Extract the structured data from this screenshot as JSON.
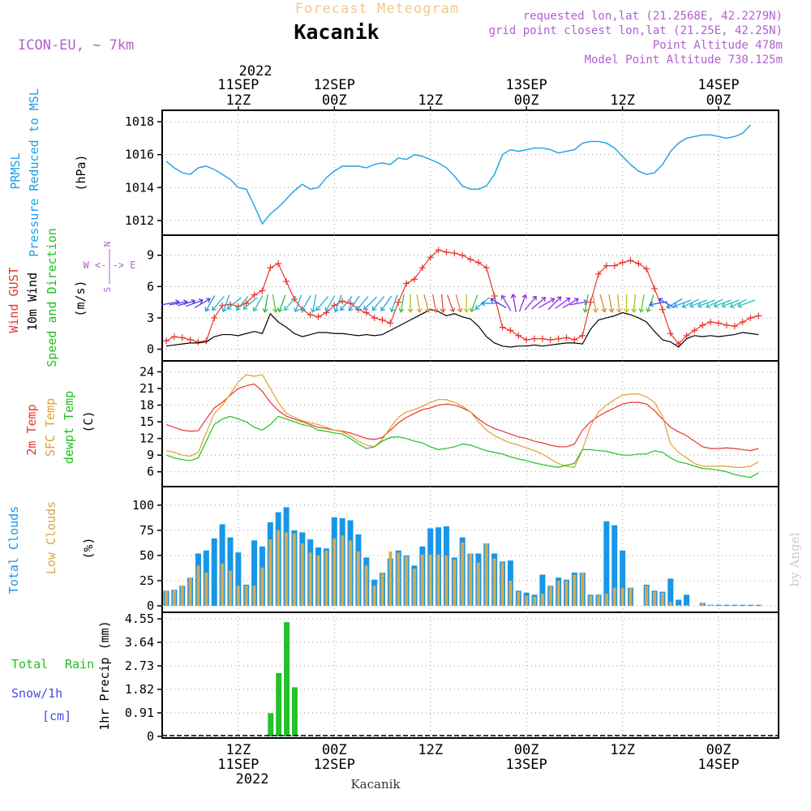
{
  "header": {
    "forecast_title": "Forecast Meteogram",
    "location": "Kacanik",
    "model": "ICON-EU, ~ 7km",
    "requested": "requested lon,lat (21.2568E, 42.2279N)",
    "grid_point": "grid point closest lon,lat (21.25E, 42.25N)",
    "point_altitude": "Point Altitude 478m",
    "model_altitude": "Model Point Altitude 730.125m"
  },
  "time_axis": {
    "top_year": "2022",
    "bottom_year": "2022",
    "hours_span": 64,
    "ticks": [
      {
        "hour": 9,
        "label": "12Z",
        "date": "11SEP"
      },
      {
        "hour": 21,
        "label": "00Z",
        "date": "12SEP"
      },
      {
        "hour": 33,
        "label": "12Z",
        "date": ""
      },
      {
        "hour": 45,
        "label": "00Z",
        "date": "13SEP"
      },
      {
        "hour": 57,
        "label": "12Z",
        "date": ""
      },
      {
        "hour": 69,
        "label": "00Z",
        "date": "14SEP"
      }
    ]
  },
  "footer_location": "Kacanik",
  "watermark": "by Angel",
  "labels": {
    "p1": {
      "prmsl": "PRMSL",
      "pressure": "Pressure Reduced to MSL",
      "unit": "(hPa)"
    },
    "p2": {
      "gust": "Wind GUST",
      "wind": "10m Wind",
      "speed": "Speed and Direction",
      "unit": "(m/s)",
      "n": "N",
      "arrows_top": "^",
      "we": "W <-|-> E",
      "s": "S"
    },
    "p3": {
      "t2m": "2m Temp",
      "sfc": "SFC Temp",
      "dew": "dewpt Temp",
      "unit": "(C)"
    },
    "p4": {
      "total": "Total Clouds",
      "low": "Low Clouds",
      "unit": "(%)"
    },
    "p5": {
      "total": "Total",
      "rain": "Rain",
      "snow": "Snow/1h",
      "cm": "[cm]",
      "unit": "1hr Precip (mm)"
    }
  },
  "colors": {
    "pressure": "#1ca0e6",
    "gust": "#e8352e",
    "wind": "#000000",
    "t2m": "#e8352e",
    "sfc": "#e0a030",
    "dew": "#20c020",
    "total_clouds": "#1896e8",
    "low_clouds": "#d8a84c",
    "rain": "#22c22a",
    "title_orange": "#f0c88a",
    "purple": "#b060d0",
    "snow_blue": "#4a4ae0"
  },
  "chart_data": {
    "type": "meteogram",
    "start_hour": 0,
    "pressure": {
      "ylim": [
        1011.5,
        1018.3
      ],
      "ticks": [
        1012,
        1014,
        1016,
        1018
      ],
      "values": [
        1015.6,
        1015.2,
        1014.9,
        1014.8,
        1015.2,
        1015.3,
        1015.1,
        1014.8,
        1014.5,
        1014.0,
        1013.9,
        1012.9,
        1011.8,
        1012.4,
        1012.8,
        1013.3,
        1013.8,
        1014.2,
        1013.9,
        1014.0,
        1014.6,
        1015.0,
        1015.3,
        1015.3,
        1015.3,
        1015.2,
        1015.4,
        1015.5,
        1015.4,
        1015.8,
        1015.7,
        1016.0,
        1015.9,
        1015.7,
        1015.5,
        1015.2,
        1014.7,
        1014.1,
        1013.9,
        1013.9,
        1014.1,
        1014.8,
        1016.0,
        1016.3,
        1016.2,
        1016.3,
        1016.4,
        1016.4,
        1016.3,
        1016.1,
        1016.2,
        1016.3,
        1016.7,
        1016.8,
        1016.8,
        1016.7,
        1016.4,
        1015.9,
        1015.4,
        1015.0,
        1014.8,
        1014.9,
        1015.4,
        1016.2,
        1016.7,
        1017.0,
        1017.1,
        1017.2,
        1017.2,
        1017.1,
        1017.0,
        1017.1,
        1017.3,
        1017.8
      ]
    },
    "wind": {
      "ylim": [
        -0.5,
        10.3
      ],
      "ticks": [
        0,
        3,
        6,
        9
      ],
      "gust": [
        0.8,
        1.2,
        1.1,
        0.9,
        0.7,
        0.8,
        3.0,
        4.2,
        4.3,
        4.1,
        4.4,
        5.2,
        5.6,
        7.8,
        8.2,
        6.5,
        4.8,
        3.8,
        3.3,
        3.1,
        3.5,
        4.2,
        4.6,
        4.4,
        3.8,
        3.5,
        3.0,
        2.8,
        2.5,
        4.5,
        6.3,
        6.7,
        7.8,
        8.8,
        9.5,
        9.3,
        9.2,
        9.0,
        8.6,
        8.3,
        7.8,
        5.1,
        2.1,
        1.8,
        1.3,
        0.9,
        1.0,
        1.0,
        0.9,
        1.0,
        1.1,
        0.9,
        1.3,
        4.5,
        7.2,
        8.0,
        8.0,
        8.3,
        8.5,
        8.2,
        7.7,
        5.8,
        3.8,
        1.5,
        0.5,
        1.3,
        1.8,
        2.3,
        2.6,
        2.5,
        2.3,
        2.2,
        2.6,
        3.0,
        3.2
      ],
      "speed": [
        0.3,
        0.4,
        0.5,
        0.6,
        0.6,
        0.7,
        1.2,
        1.4,
        1.4,
        1.3,
        1.5,
        1.7,
        1.5,
        3.4,
        2.6,
        2.1,
        1.5,
        1.2,
        1.4,
        1.6,
        1.6,
        1.5,
        1.5,
        1.4,
        1.3,
        1.4,
        1.3,
        1.4,
        1.8,
        2.2,
        2.6,
        3.0,
        3.4,
        3.8,
        3.6,
        3.2,
        3.4,
        3.1,
        2.9,
        2.2,
        1.2,
        0.6,
        0.3,
        0.2,
        0.3,
        0.3,
        0.4,
        0.3,
        0.4,
        0.5,
        0.6,
        0.6,
        0.5,
        1.9,
        2.8,
        3.0,
        3.2,
        3.5,
        3.3,
        3.0,
        2.6,
        1.7,
        0.9,
        0.7,
        0.2,
        1.0,
        1.3,
        1.2,
        1.3,
        1.2,
        1.3,
        1.4,
        1.6,
        1.5,
        1.4
      ]
    },
    "temperature": {
      "ylim": [
        4.5,
        24.8
      ],
      "ticks": [
        6,
        9,
        12,
        15,
        18,
        21,
        24
      ],
      "t2m": [
        14.5,
        14.0,
        13.5,
        13.3,
        13.4,
        15.5,
        17.5,
        18.5,
        19.8,
        21.0,
        21.5,
        21.8,
        20.5,
        18.5,
        17.0,
        16.0,
        15.5,
        15.0,
        14.5,
        14.0,
        13.8,
        13.5,
        13.3,
        13.0,
        12.5,
        12.0,
        11.8,
        12.2,
        13.5,
        14.8,
        15.8,
        16.5,
        17.2,
        17.5,
        18.0,
        18.2,
        18.0,
        17.5,
        16.8,
        15.5,
        14.5,
        13.8,
        13.3,
        12.8,
        12.3,
        12.0,
        11.5,
        11.2,
        10.8,
        10.5,
        10.5,
        11.0,
        13.5,
        15.0,
        16.0,
        16.8,
        17.5,
        18.2,
        18.5,
        18.5,
        18.2,
        17.0,
        15.5,
        14.0,
        13.2,
        12.5,
        11.5,
        10.5,
        10.2,
        10.2,
        10.3,
        10.2,
        10.0,
        9.8,
        10.2
      ],
      "sfc": [
        9.8,
        9.5,
        9.0,
        8.8,
        9.5,
        13.0,
        16.5,
        18.0,
        20.0,
        22.2,
        23.5,
        23.2,
        23.5,
        21.0,
        18.5,
        16.5,
        15.8,
        15.2,
        14.8,
        14.5,
        14.0,
        13.5,
        13.2,
        12.5,
        11.5,
        10.8,
        10.5,
        11.8,
        14.0,
        15.8,
        16.8,
        17.2,
        17.8,
        18.5,
        19.0,
        19.0,
        18.5,
        17.8,
        16.8,
        15.0,
        13.5,
        12.5,
        11.8,
        11.2,
        10.8,
        10.3,
        9.8,
        9.2,
        8.3,
        7.5,
        7.0,
        6.8,
        10.0,
        14.2,
        16.8,
        18.0,
        19.0,
        19.8,
        20.0,
        20.0,
        19.5,
        18.5,
        16.0,
        11.0,
        9.5,
        8.5,
        7.5,
        7.0,
        7.0,
        7.0,
        7.0,
        6.8,
        6.8,
        7.0,
        7.8
      ],
      "dew": [
        9.0,
        8.5,
        8.2,
        8.0,
        8.5,
        11.5,
        14.5,
        15.5,
        16.0,
        15.5,
        15.0,
        14.0,
        13.5,
        14.5,
        16.0,
        15.5,
        15.0,
        14.5,
        14.2,
        13.5,
        13.3,
        13.0,
        12.8,
        12.0,
        11.0,
        10.2,
        10.5,
        11.5,
        12.2,
        12.3,
        12.0,
        11.5,
        11.2,
        10.5,
        10.0,
        10.2,
        10.5,
        11.0,
        10.8,
        10.3,
        9.8,
        9.5,
        9.2,
        8.7,
        8.3,
        8.0,
        7.6,
        7.3,
        7.0,
        6.8,
        7.2,
        7.5,
        10.0,
        10.0,
        9.8,
        9.7,
        9.3,
        9.0,
        9.0,
        9.2,
        9.2,
        9.8,
        9.5,
        8.5,
        7.8,
        7.5,
        7.0,
        6.6,
        6.5,
        6.3,
        6.0,
        5.5,
        5.2,
        5.0,
        5.8
      ]
    },
    "clouds": {
      "ylim": [
        0,
        112
      ],
      "ticks": [
        0,
        25,
        50,
        75,
        100
      ],
      "total": [
        15,
        16,
        20,
        28,
        52,
        55,
        67,
        81,
        68,
        53,
        21,
        65,
        59,
        83,
        93,
        98,
        75,
        73,
        66,
        58,
        57,
        88,
        87,
        85,
        71,
        48,
        26,
        33,
        47,
        55,
        50,
        40,
        59,
        77,
        78,
        79,
        48,
        68,
        52,
        52,
        62,
        52,
        44,
        45,
        15,
        13,
        11,
        31,
        20,
        28,
        26,
        33,
        33,
        11,
        11,
        84,
        80,
        55,
        18,
        0,
        21,
        15,
        14,
        27,
        6,
        11,
        0,
        3,
        1,
        1,
        1,
        1,
        1,
        1,
        1
      ],
      "low": [
        15,
        16,
        20,
        28,
        40,
        33,
        0,
        42,
        35,
        20,
        20,
        20,
        38,
        66,
        75,
        73,
        72,
        62,
        53,
        50,
        55,
        67,
        70,
        65,
        54,
        40,
        20,
        33,
        54,
        53,
        49,
        37,
        51,
        51,
        51,
        50,
        46,
        63,
        52,
        43,
        62,
        47,
        43,
        25,
        14,
        10,
        9,
        12,
        20,
        25,
        25,
        31,
        33,
        10,
        10,
        12,
        18,
        18,
        18,
        0,
        20,
        14,
        13,
        4,
        1,
        1,
        0,
        3,
        1,
        0,
        0,
        0,
        0,
        0,
        0
      ]
    },
    "precip": {
      "ylim": [
        0,
        4.55
      ],
      "ticks": [
        0,
        0.91,
        1.82,
        2.73,
        3.64,
        4.55
      ],
      "rain": [
        0,
        0,
        0,
        0,
        0,
        0,
        0,
        0,
        0,
        0,
        0,
        0,
        0,
        0.9,
        2.45,
        4.42,
        1.9,
        0,
        0,
        0,
        0,
        0,
        0,
        0,
        0,
        0,
        0,
        0,
        0,
        0,
        0,
        0,
        0,
        0,
        0,
        0,
        0,
        0,
        0,
        0,
        0,
        0,
        0,
        0,
        0,
        0,
        0,
        0,
        0,
        0,
        0,
        0,
        0,
        0,
        0,
        0,
        0,
        0,
        0,
        0,
        0,
        0,
        0,
        0,
        0,
        0,
        0,
        0,
        0,
        0,
        0,
        0,
        0,
        0,
        0
      ],
      "snow": [
        0,
        0,
        0,
        0,
        0,
        0,
        0,
        0,
        0,
        0,
        0,
        0,
        0,
        0,
        0,
        0,
        0,
        0,
        0,
        0,
        0,
        0,
        0,
        0,
        0,
        0,
        0,
        0,
        0,
        0,
        0,
        0,
        0,
        0,
        0,
        0,
        0,
        0,
        0,
        0,
        0,
        0,
        0,
        0,
        0,
        0,
        0,
        0,
        0,
        0,
        0,
        0,
        0,
        0,
        0,
        0,
        0,
        0,
        0,
        0,
        0,
        0,
        0,
        0,
        0,
        0,
        0,
        0,
        0,
        0,
        0,
        0,
        0,
        0,
        0
      ]
    },
    "wind_barbs": [
      {
        "x": 0.5,
        "dir": 80,
        "c": "#4a3ae0"
      },
      {
        "x": 1.5,
        "dir": 80,
        "c": "#4a3ae0"
      },
      {
        "x": 2.5,
        "dir": 75,
        "c": "#4a3ae0"
      },
      {
        "x": 3.5,
        "dir": 70,
        "c": "#4a3ae0"
      },
      {
        "x": 4.5,
        "dir": 60,
        "c": "#5a3ae0"
      },
      {
        "x": 5.5,
        "dir": 210,
        "c": "#2090e0"
      },
      {
        "x": 6.5,
        "dir": 220,
        "c": "#20b0d0"
      },
      {
        "x": 7.5,
        "dir": 200,
        "c": "#20b0d0"
      },
      {
        "x": 8.5,
        "dir": 230,
        "c": "#20b0d0"
      },
      {
        "x": 9.5,
        "dir": 220,
        "c": "#20c0b0"
      },
      {
        "x": 10.5,
        "dir": 230,
        "c": "#20c0b0"
      },
      {
        "x": 11.5,
        "dir": 210,
        "c": "#20c0b0"
      },
      {
        "x": 12.5,
        "dir": 190,
        "c": "#20c040"
      },
      {
        "x": 13.5,
        "dir": 170,
        "c": "#60c020"
      },
      {
        "x": 14.5,
        "dir": 200,
        "c": "#20c040"
      },
      {
        "x": 15.5,
        "dir": 220,
        "c": "#20c0b0"
      },
      {
        "x": 16.5,
        "dir": 200,
        "c": "#20b0d0"
      },
      {
        "x": 17.5,
        "dir": 210,
        "c": "#20b0d0"
      },
      {
        "x": 18.5,
        "dir": 190,
        "c": "#20b0d0"
      },
      {
        "x": 19.5,
        "dir": 220,
        "c": "#20b0d0"
      },
      {
        "x": 20.5,
        "dir": 210,
        "c": "#20b0d0"
      },
      {
        "x": 21.5,
        "dir": 200,
        "c": "#20a0e0"
      },
      {
        "x": 22.5,
        "dir": 220,
        "c": "#20a0e0"
      },
      {
        "x": 23.5,
        "dir": 215,
        "c": "#20a0e0"
      },
      {
        "x": 24.5,
        "dir": 220,
        "c": "#20a0e0"
      },
      {
        "x": 25.5,
        "dir": 225,
        "c": "#20a0e0"
      },
      {
        "x": 26.5,
        "dir": 220,
        "c": "#20a0e0"
      },
      {
        "x": 27.5,
        "dir": 215,
        "c": "#20a0e0"
      },
      {
        "x": 28.5,
        "dir": 200,
        "c": "#20b0d0"
      },
      {
        "x": 29.5,
        "dir": 190,
        "c": "#40c040"
      },
      {
        "x": 30.5,
        "dir": 180,
        "c": "#a0c020"
      },
      {
        "x": 31.5,
        "dir": 170,
        "c": "#e0a030"
      },
      {
        "x": 32.5,
        "dir": 165,
        "c": "#e08030"
      },
      {
        "x": 33.5,
        "dir": 170,
        "c": "#e06030"
      },
      {
        "x": 34.5,
        "dir": 175,
        "c": "#e05030"
      },
      {
        "x": 35.5,
        "dir": 160,
        "c": "#e05030"
      },
      {
        "x": 36.5,
        "dir": 165,
        "c": "#e08030"
      },
      {
        "x": 37.5,
        "dir": 180,
        "c": "#c0c020"
      },
      {
        "x": 38.5,
        "dir": 200,
        "c": "#40c040"
      },
      {
        "x": 39.5,
        "dir": 230,
        "c": "#20b0d0"
      },
      {
        "x": 40.5,
        "dir": 270,
        "c": "#2090e0"
      },
      {
        "x": 41.5,
        "dir": 300,
        "c": "#4a3ae0"
      },
      {
        "x": 42.5,
        "dir": 330,
        "c": "#7a3ae0"
      },
      {
        "x": 43.5,
        "dir": 350,
        "c": "#8a2ae0"
      },
      {
        "x": 44.5,
        "dir": 20,
        "c": "#8a2ae0"
      },
      {
        "x": 45.5,
        "dir": 40,
        "c": "#8a2ae0"
      },
      {
        "x": 46.5,
        "dir": 50,
        "c": "#8a2ae0"
      },
      {
        "x": 47.5,
        "dir": 60,
        "c": "#8a2ae0"
      },
      {
        "x": 48.5,
        "dir": 45,
        "c": "#8a2ae0"
      },
      {
        "x": 49.5,
        "dir": 55,
        "c": "#8a2ae0"
      },
      {
        "x": 50.5,
        "dir": 60,
        "c": "#8a2ae0"
      },
      {
        "x": 51.5,
        "dir": 80,
        "c": "#6a3ae0"
      },
      {
        "x": 52.5,
        "dir": 190,
        "c": "#40c040"
      },
      {
        "x": 53.5,
        "dir": 170,
        "c": "#e0a030"
      },
      {
        "x": 54.5,
        "dir": 165,
        "c": "#e08030"
      },
      {
        "x": 55.5,
        "dir": 170,
        "c": "#e08030"
      },
      {
        "x": 56.5,
        "dir": 175,
        "c": "#e0a030"
      },
      {
        "x": 57.5,
        "dir": 180,
        "c": "#c0c020"
      },
      {
        "x": 58.5,
        "dir": 185,
        "c": "#a0c020"
      },
      {
        "x": 59.5,
        "dir": 190,
        "c": "#60c030"
      },
      {
        "x": 60.5,
        "dir": 200,
        "c": "#40c040"
      },
      {
        "x": 61.5,
        "dir": 260,
        "c": "#2060e0"
      },
      {
        "x": 62.5,
        "dir": 300,
        "c": "#4a3ae0"
      },
      {
        "x": 63.5,
        "dir": 240,
        "c": "#2090e0"
      },
      {
        "x": 64.5,
        "dir": 250,
        "c": "#20a0e0"
      },
      {
        "x": 65.5,
        "dir": 245,
        "c": "#20b0d0"
      },
      {
        "x": 66.5,
        "dir": 250,
        "c": "#20b0d0"
      },
      {
        "x": 67.5,
        "dir": 250,
        "c": "#20b0d0"
      },
      {
        "x": 68.5,
        "dir": 245,
        "c": "#20c0b0"
      },
      {
        "x": 69.5,
        "dir": 250,
        "c": "#20c0b0"
      },
      {
        "x": 70.5,
        "dir": 250,
        "c": "#20c0b0"
      },
      {
        "x": 71.5,
        "dir": 245,
        "c": "#20c0b0"
      },
      {
        "x": 72.5,
        "dir": 250,
        "c": "#20c0b0"
      }
    ]
  }
}
